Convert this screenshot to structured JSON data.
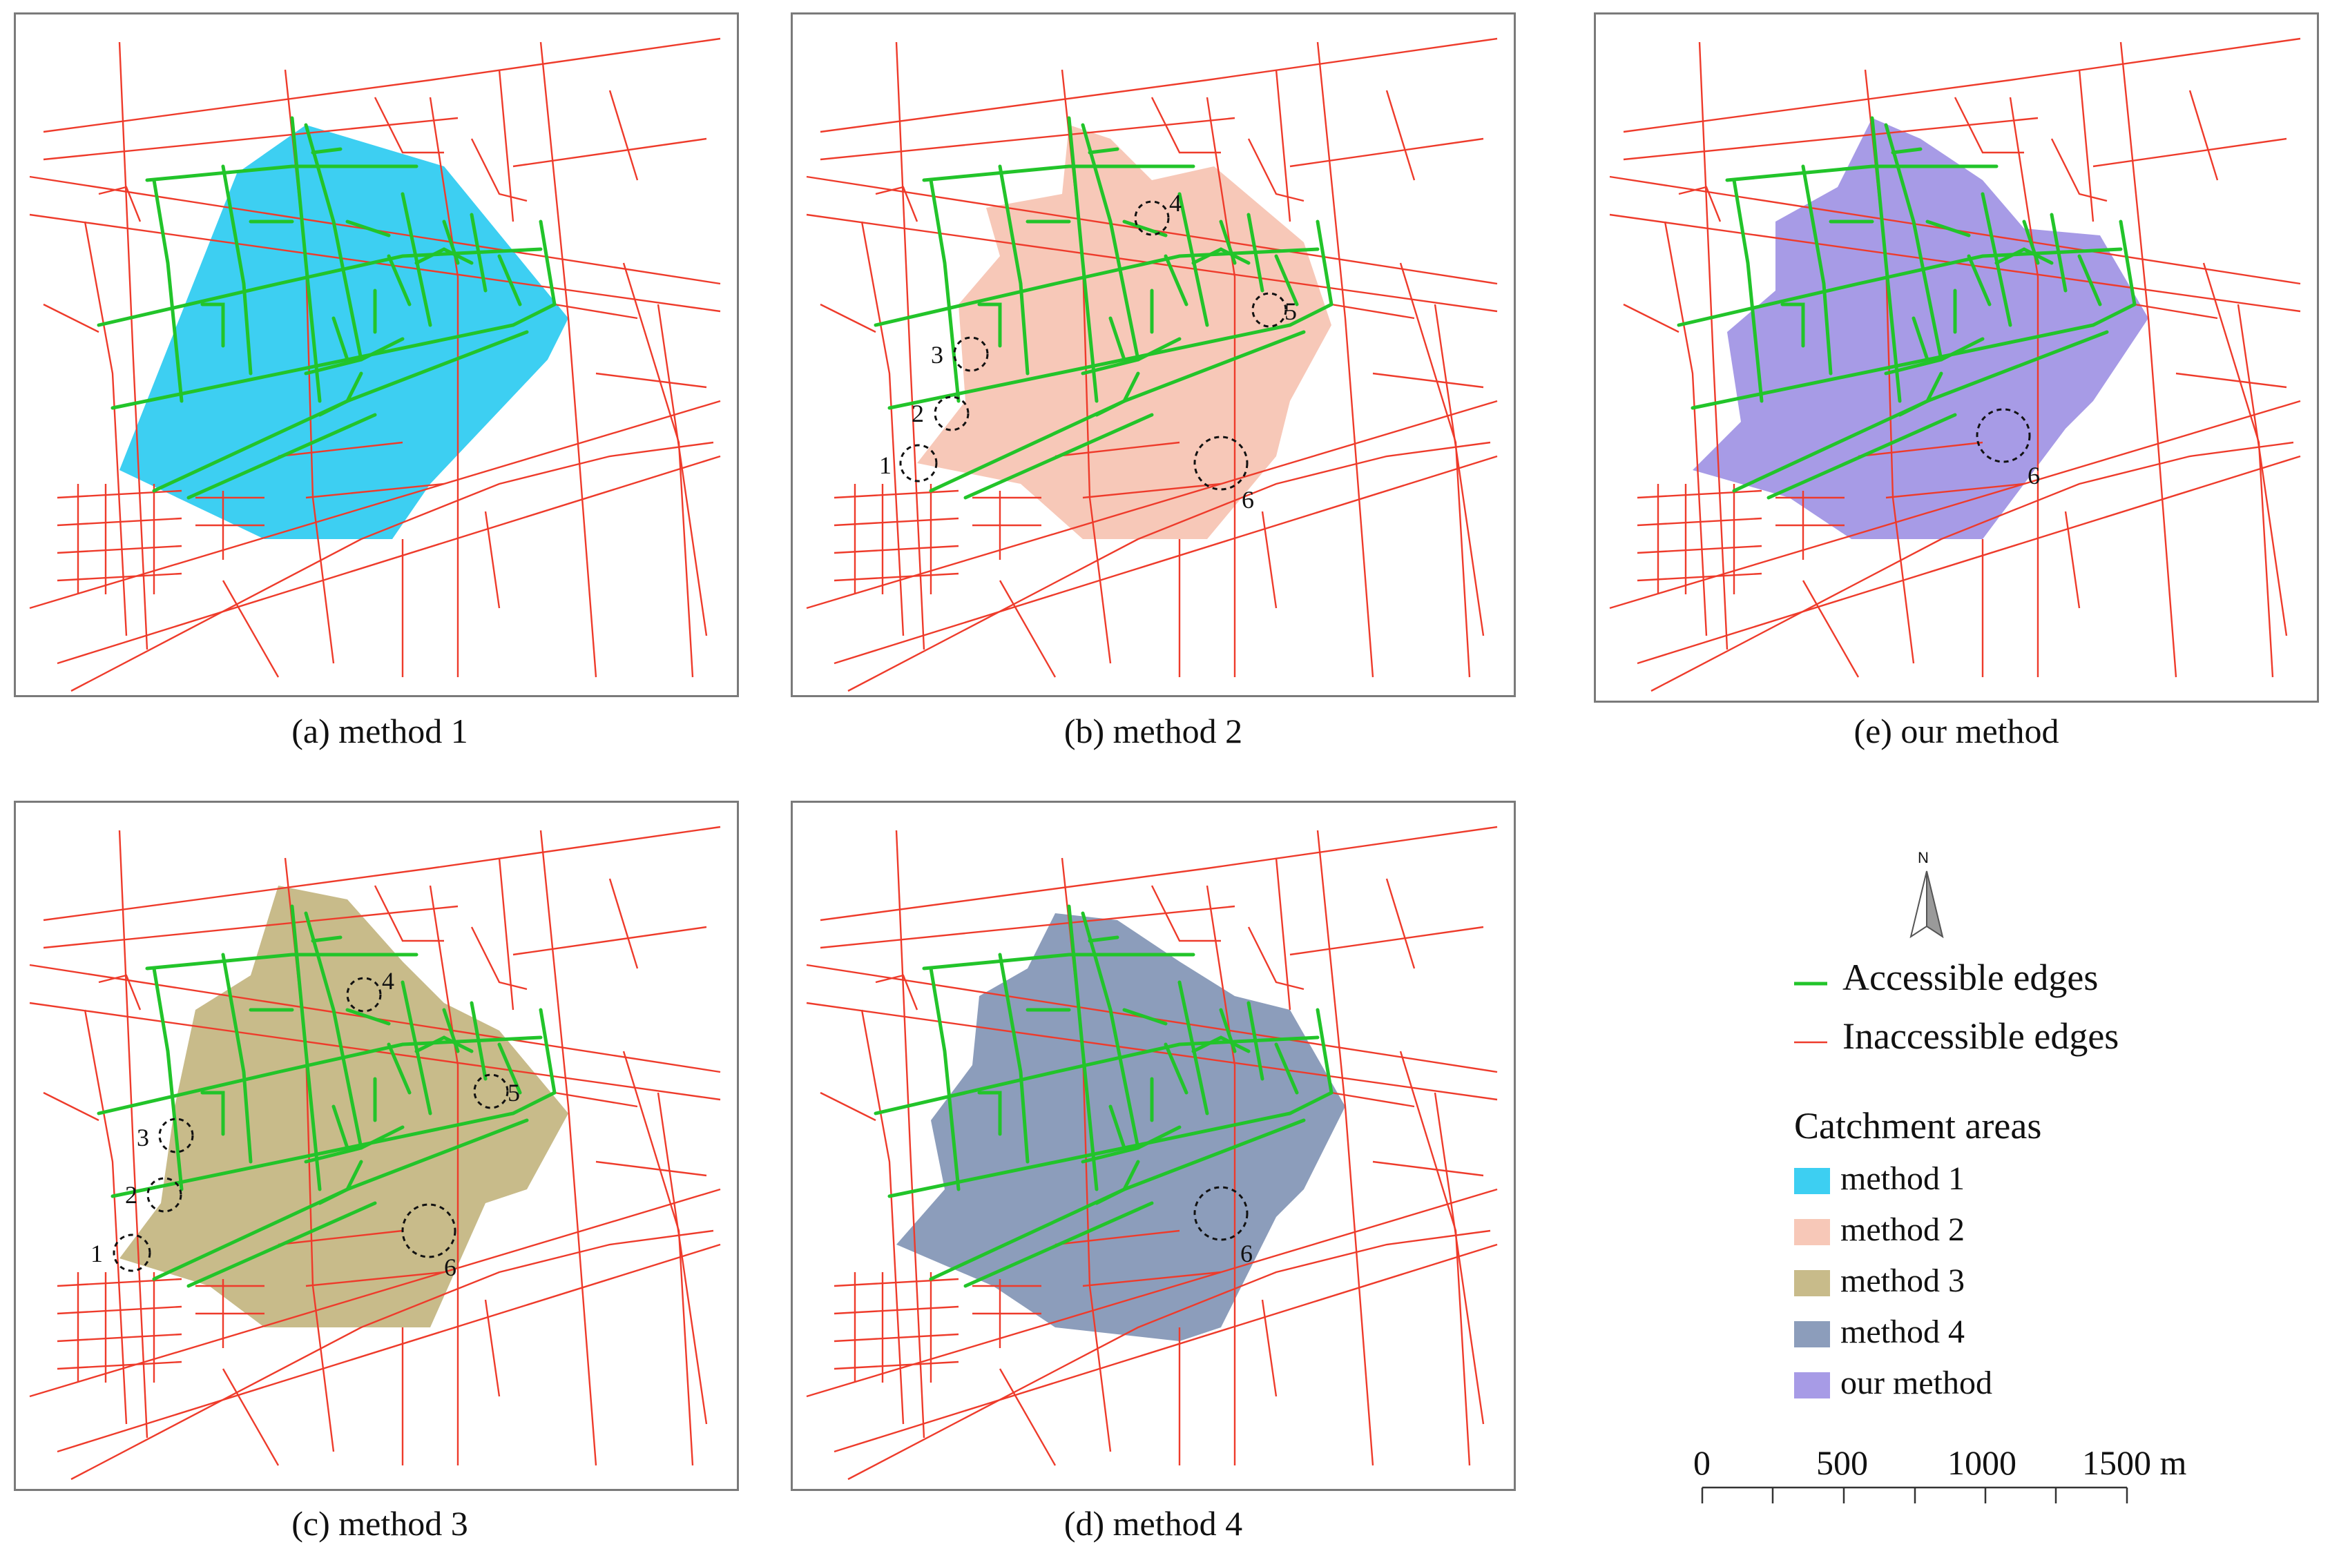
{
  "panels": {
    "a": {
      "caption": "(a) method 1",
      "color": "#3dcff2"
    },
    "b": {
      "caption": "(b) method 2",
      "color": "#f7c8b8",
      "markers": [
        "1",
        "2",
        "3",
        "4",
        "5",
        "6"
      ]
    },
    "c": {
      "caption": "(c) method 3",
      "color": "#c8bb8a",
      "markers": [
        "1",
        "2",
        "3",
        "4",
        "5",
        "6"
      ]
    },
    "d": {
      "caption": "(d) method 4",
      "color": "#8c9dbb",
      "markers": [
        "6"
      ]
    },
    "e": {
      "caption": "(e) our method",
      "color": "#a79be6",
      "markers": [
        "6"
      ]
    }
  },
  "north_arrow": {
    "label": "N",
    "icon": "north-arrow-icon"
  },
  "legend": {
    "accessible": {
      "label": "Accessible edges",
      "color": "#22c42a"
    },
    "inaccessible": {
      "label": "Inaccessible edges",
      "color": "#ee3b2b"
    },
    "catchment_title": "Catchment areas",
    "items": [
      {
        "label": "method 1",
        "color": "#3dcff2"
      },
      {
        "label": "method 2",
        "color": "#f7c8b8"
      },
      {
        "label": "method 3",
        "color": "#c8bb8a"
      },
      {
        "label": "method 4",
        "color": "#8c9dbb"
      },
      {
        "label": "our method",
        "color": "#a79be6"
      }
    ]
  },
  "scale_bar": {
    "labels": [
      "0",
      "500",
      "1000",
      "1500 m"
    ]
  }
}
